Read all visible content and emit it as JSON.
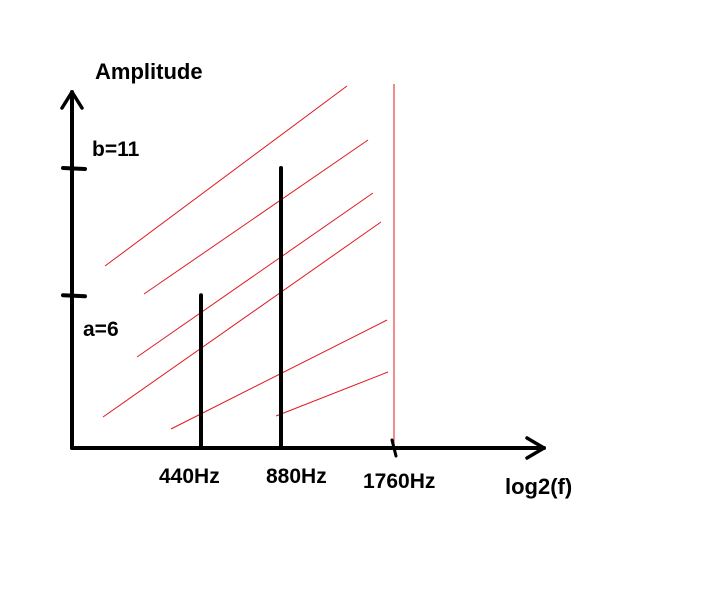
{
  "chart_data": {
    "type": "bar",
    "title": "",
    "ylabel": "Amplitude",
    "xlabel": "log2(f)",
    "x_scale": "log2",
    "categories": [
      "440Hz",
      "880Hz",
      "1760Hz"
    ],
    "values": [
      6,
      11,
      null
    ],
    "y_ticks": [
      {
        "value": 6,
        "label": "a=6"
      },
      {
        "value": 11,
        "label": "b=11"
      }
    ],
    "cutoff": {
      "label": "1760Hz"
    },
    "colors": {
      "bars": "#000000",
      "axes": "#000000",
      "hatch": "#e0191f"
    },
    "grid": false,
    "legend": "none"
  }
}
